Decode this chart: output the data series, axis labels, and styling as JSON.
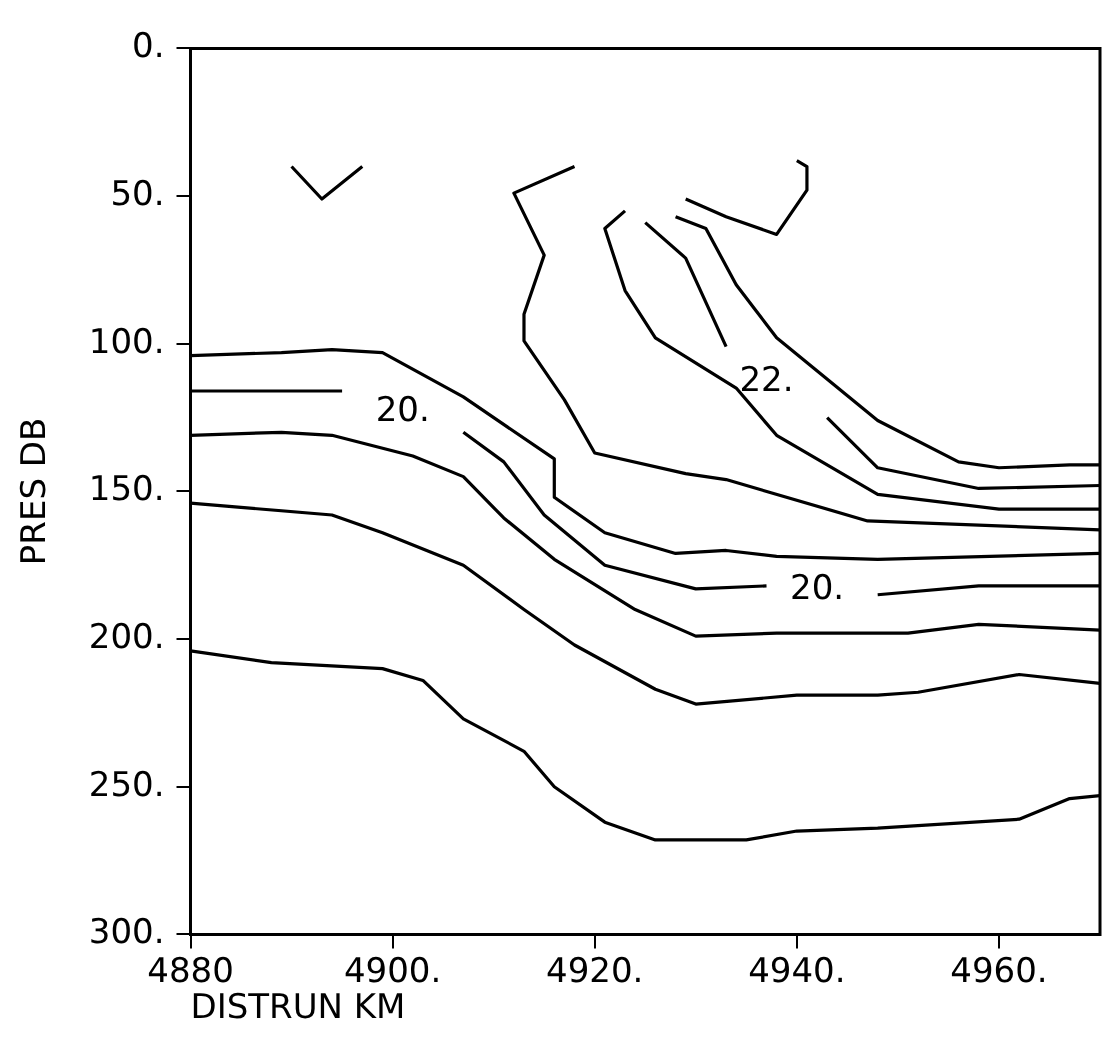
{
  "chart_data": {
    "type": "line",
    "xlabel": "DISTRUN KM",
    "ylabel": "PRES DB",
    "xlim": [
      4880,
      4970
    ],
    "ylim": [
      300,
      0
    ],
    "xticks": [
      {
        "value": 4880,
        "label": "4880"
      },
      {
        "value": 4900,
        "label": "4900."
      },
      {
        "value": 4920,
        "label": "4920."
      },
      {
        "value": 4940,
        "label": "4940."
      },
      {
        "value": 4960,
        "label": "4960."
      }
    ],
    "yticks": [
      {
        "value": 0,
        "label": "0."
      },
      {
        "value": 50,
        "label": "50."
      },
      {
        "value": 100,
        "label": "100."
      },
      {
        "value": 150,
        "label": "150."
      },
      {
        "value": 200,
        "label": "200."
      },
      {
        "value": 250,
        "label": "250."
      },
      {
        "value": 300,
        "label": "300."
      }
    ],
    "grid": false,
    "legend": false,
    "marker": "none",
    "line_style": "solid",
    "series": [
      {
        "color": "#000000",
        "x": [
          4880,
          4889,
          4894,
          4899,
          4907,
          4916,
          4916,
          4921,
          4928,
          4933,
          4938,
          4948,
          4970
        ],
        "values": [
          104,
          103,
          102,
          103,
          118,
          139,
          152,
          164,
          171,
          170,
          172,
          173,
          171
        ]
      },
      {
        "name": "20.",
        "color": "#000000",
        "x": [
          4880,
          4895,
          4901,
          4907,
          4911,
          4915,
          4921,
          4930,
          4937,
          4942,
          4948,
          4958,
          4970
        ],
        "values": [
          116,
          116,
          null,
          130,
          140,
          158,
          175,
          183,
          182,
          null,
          185,
          182,
          182
        ]
      },
      {
        "color": "#000000",
        "x": [
          4880,
          4889,
          4894,
          4902,
          4907,
          4911,
          4916,
          4924,
          4930,
          4938,
          4951,
          4958,
          4970
        ],
        "values": [
          131,
          130,
          131,
          138,
          145,
          159,
          173,
          190,
          199,
          198,
          198,
          195,
          197
        ]
      },
      {
        "color": "#000000",
        "x": [
          4880,
          4894,
          4899,
          4907,
          4913,
          4918,
          4926,
          4930,
          4940,
          4948,
          4952,
          4962,
          4970
        ],
        "values": [
          154,
          158,
          164,
          175,
          190,
          202,
          217,
          222,
          219,
          219,
          218,
          212,
          215
        ]
      },
      {
        "color": "#000000",
        "x": [
          4880,
          4888,
          4899,
          4903,
          4907,
          4913,
          4916,
          4921,
          4926,
          4935,
          4940,
          4948,
          4962,
          4967,
          4970
        ],
        "values": [
          204,
          208,
          210,
          214,
          227,
          238,
          250,
          262,
          268,
          268,
          265,
          264,
          261,
          254,
          253
        ]
      },
      {
        "name": "22.",
        "color": "#000000",
        "x": [
          4925,
          4929,
          4933,
          4937,
          4943,
          4948,
          4958,
          4970
        ],
        "values": [
          59,
          71,
          101,
          null,
          125,
          142,
          149,
          148
        ]
      },
      {
        "color": "#000000",
        "x": [
          4928,
          4931,
          4934,
          4936,
          4938,
          4948,
          4956,
          4960,
          4967,
          4970
        ],
        "values": [
          57,
          61,
          80,
          89,
          98,
          126,
          140,
          142,
          141,
          141
        ]
      },
      {
        "color": "#000000",
        "x": [
          4923,
          4921,
          4923,
          4926,
          4934,
          4938,
          4948,
          4960,
          4970
        ],
        "values": [
          55,
          61,
          82,
          98,
          115,
          131,
          151,
          156,
          156
        ]
      },
      {
        "color": "#000000",
        "x": [
          4918,
          4912,
          4915,
          4913,
          4913,
          4917,
          4920,
          4929,
          4933,
          4947,
          4970
        ],
        "values": [
          40,
          49,
          70,
          90,
          99,
          119,
          137,
          144,
          146,
          160,
          163
        ]
      },
      {
        "color": "#000000",
        "x": [
          4929,
          4933,
          4938,
          4941,
          4941,
          4940
        ],
        "values": [
          51,
          57,
          63,
          48,
          40,
          38
        ]
      },
      {
        "color": "#000000",
        "x": [
          4890,
          4893,
          4897
        ],
        "values": [
          40,
          51,
          40
        ]
      }
    ]
  }
}
